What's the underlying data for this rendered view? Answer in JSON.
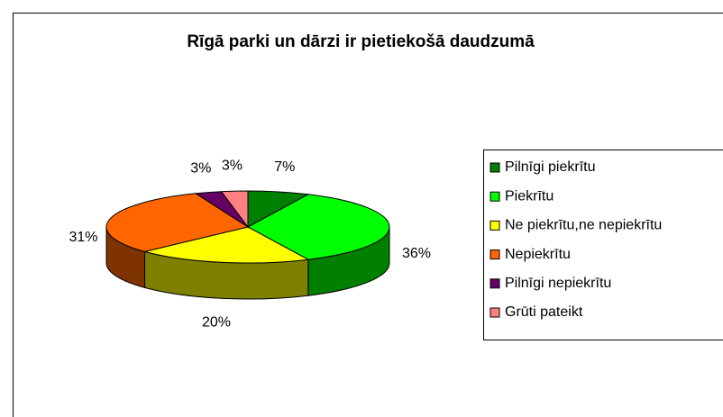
{
  "chart_data": {
    "type": "pie3d",
    "title": "Rīgā parki un dārzi ir pietiekošā daudzumā",
    "categories": [
      "Pilnīgi piekrītu",
      "Piekrītu",
      "Ne piekrītu,ne nepiekrītu",
      "Nepiekrītu",
      "Pilnīgi nepiekrītu",
      "Grūti pateikt"
    ],
    "values": [
      7,
      36,
      20,
      31,
      3,
      3
    ],
    "value_labels": [
      "7%",
      "36%",
      "20%",
      "31%",
      "3%",
      "3%"
    ],
    "colors": [
      "#008000",
      "#00ff00",
      "#ffff00",
      "#ff6600",
      "#660066",
      "#ff8080"
    ],
    "legend": "right"
  }
}
